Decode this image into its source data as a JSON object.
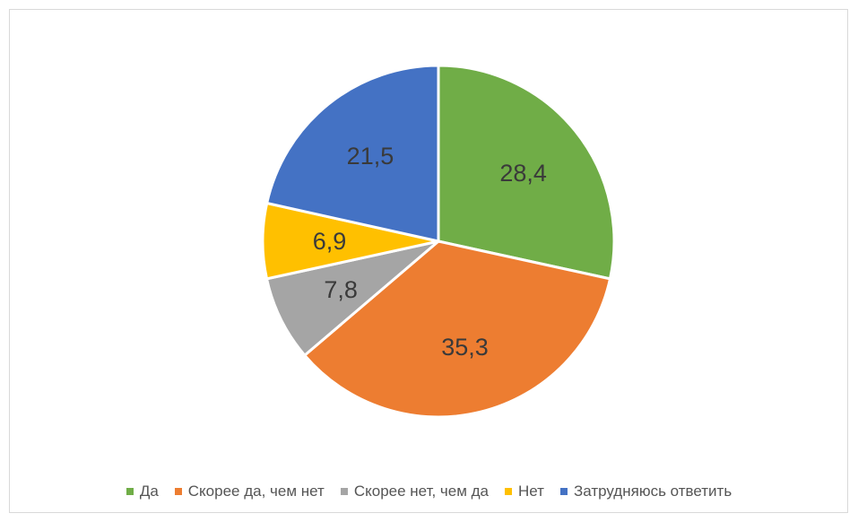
{
  "chart_data": {
    "type": "pie",
    "title": "",
    "labels": [
      "Да",
      "Скорее да, чем нет",
      "Скорее нет, чем да",
      "Нет",
      "Затрудняюсь ответить"
    ],
    "values": [
      28.4,
      35.3,
      7.8,
      6.9,
      21.5
    ],
    "value_labels": [
      "28,4",
      "35,3",
      "7,8",
      "6,9",
      "21,5"
    ],
    "colors": [
      "#70AD47",
      "#ED7D31",
      "#A5A5A5",
      "#FFC000",
      "#4472C4"
    ],
    "start": "top, clockwise",
    "legend_position": "bottom"
  }
}
